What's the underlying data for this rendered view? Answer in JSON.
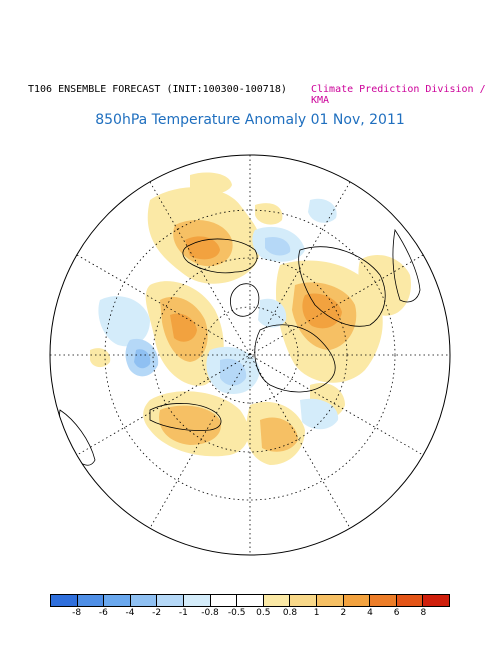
{
  "header": {
    "left": "T106 ENSEMBLE FORECAST (INIT:100300-100718)",
    "right": "Climate Prediction Division / KMA",
    "title": "850hPa Temperature Anomaly 01 Nov, 2011"
  },
  "colors": {
    "background": "#ffffff",
    "title": "#1f6fbf",
    "credit": "#cc0099",
    "coast": "#000000",
    "grid": "#000000"
  },
  "colorbar": {
    "boxes": [
      "#2f6fdc",
      "#4f8fe6",
      "#6aa8ee",
      "#8fc0f2",
      "#b5d8f7",
      "#d4ecfa",
      "#ffffff",
      "#ffffff",
      "#fbe9a6",
      "#f8d889",
      "#f6c064",
      "#f2a23f",
      "#ec7d28",
      "#e35518",
      "#cf1f0c"
    ],
    "labels": [
      "-8",
      "-6",
      "-4",
      "-2",
      "-1",
      "-0.8",
      "-0.5",
      "0.5",
      "0.8",
      "1",
      "2",
      "4",
      "6",
      "8"
    ]
  },
  "map": {
    "projection": "north-polar-stereographic",
    "grid": "dotted-lat-lon"
  }
}
